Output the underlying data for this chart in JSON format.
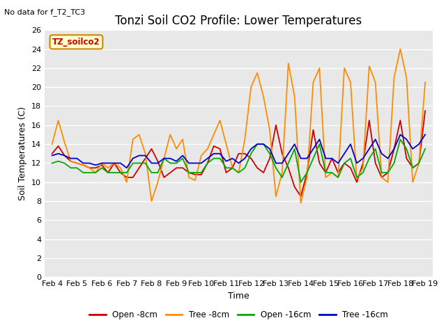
{
  "title": "Tonzi Soil CO2 Profile: Lower Temperatures",
  "subtitle": "No data for f_T2_TC3",
  "ylabel": "Soil Temperatures (C)",
  "xlabel": "Time",
  "legend_label": "TZ_soilco2",
  "ylim": [
    0,
    26
  ],
  "yticks": [
    0,
    2,
    4,
    6,
    8,
    10,
    12,
    14,
    16,
    18,
    20,
    22,
    24,
    26
  ],
  "xtick_labels": [
    "Feb 4",
    "Feb 5",
    "Feb 6",
    "Feb 7",
    "Feb 8",
    "Feb 9",
    "Feb 10",
    "Feb 11",
    "Feb 12",
    "Feb 13",
    "Feb 14",
    "Feb 15",
    "Feb 16",
    "Feb 17",
    "Feb 18",
    "Feb 19"
  ],
  "series": {
    "Open -8cm": {
      "color": "#cc0000",
      "x": [
        0,
        0.25,
        0.5,
        0.75,
        1.0,
        1.25,
        1.5,
        1.75,
        2.0,
        2.25,
        2.5,
        2.75,
        3.0,
        3.25,
        3.5,
        3.75,
        4.0,
        4.25,
        4.5,
        4.75,
        5.0,
        5.25,
        5.5,
        5.75,
        6.0,
        6.25,
        6.5,
        6.75,
        7.0,
        7.25,
        7.5,
        7.75,
        8.0,
        8.25,
        8.5,
        8.75,
        9.0,
        9.25,
        9.5,
        9.75,
        10.0,
        10.25,
        10.5,
        10.75,
        11.0,
        11.25,
        11.5,
        11.75,
        12.0,
        12.25,
        12.5,
        12.75,
        13.0,
        13.25,
        13.5,
        13.75,
        14.0,
        14.25,
        14.5,
        14.75,
        15.0
      ],
      "y": [
        13.0,
        13.8,
        12.8,
        12.2,
        12.0,
        11.8,
        11.5,
        11.5,
        11.8,
        11.0,
        12.0,
        11.0,
        10.5,
        10.5,
        11.5,
        12.5,
        13.5,
        12.2,
        10.5,
        11.0,
        11.5,
        11.5,
        11.0,
        10.8,
        10.8,
        12.0,
        13.8,
        13.5,
        11.0,
        11.5,
        13.0,
        13.0,
        12.5,
        11.5,
        11.0,
        12.5,
        16.0,
        13.0,
        11.5,
        9.5,
        8.5,
        11.0,
        15.5,
        12.0,
        11.0,
        12.5,
        11.0,
        12.0,
        11.5,
        10.0,
        12.0,
        16.5,
        12.0,
        10.5,
        11.0,
        13.5,
        16.5,
        12.5,
        11.5,
        12.0,
        17.5
      ]
    },
    "Tree -8cm": {
      "color": "#ff8c00",
      "x": [
        0,
        0.25,
        0.5,
        0.75,
        1.0,
        1.25,
        1.5,
        1.75,
        2.0,
        2.25,
        2.5,
        2.75,
        3.0,
        3.25,
        3.5,
        3.75,
        4.0,
        4.25,
        4.5,
        4.75,
        5.0,
        5.25,
        5.5,
        5.75,
        6.0,
        6.25,
        6.5,
        6.75,
        7.0,
        7.25,
        7.5,
        7.75,
        8.0,
        8.25,
        8.5,
        8.75,
        9.0,
        9.25,
        9.5,
        9.75,
        10.0,
        10.25,
        10.5,
        10.75,
        11.0,
        11.25,
        11.5,
        11.75,
        12.0,
        12.25,
        12.5,
        12.75,
        13.0,
        13.25,
        13.5,
        13.75,
        14.0,
        14.25,
        14.5,
        14.75,
        15.0
      ],
      "y": [
        14.0,
        16.5,
        14.2,
        12.2,
        12.0,
        11.8,
        11.5,
        11.0,
        12.0,
        11.5,
        12.0,
        11.5,
        10.0,
        14.5,
        15.0,
        13.0,
        8.0,
        10.0,
        12.5,
        15.0,
        13.5,
        14.5,
        10.5,
        10.2,
        12.8,
        13.5,
        15.0,
        16.5,
        14.0,
        11.5,
        11.0,
        14.5,
        20.0,
        21.5,
        19.0,
        15.5,
        8.5,
        11.0,
        22.5,
        19.0,
        7.8,
        10.5,
        20.5,
        22.0,
        10.5,
        11.0,
        10.5,
        22.0,
        20.5,
        10.3,
        11.5,
        22.2,
        20.5,
        10.5,
        10.0,
        21.0,
        24.0,
        21.0,
        10.0,
        12.0,
        20.5
      ]
    },
    "Open -16cm": {
      "color": "#00aa00",
      "x": [
        0,
        0.25,
        0.5,
        0.75,
        1.0,
        1.25,
        1.5,
        1.75,
        2.0,
        2.25,
        2.5,
        2.75,
        3.0,
        3.25,
        3.5,
        3.75,
        4.0,
        4.25,
        4.5,
        4.75,
        5.0,
        5.25,
        5.5,
        5.75,
        6.0,
        6.25,
        6.5,
        6.75,
        7.0,
        7.25,
        7.5,
        7.75,
        8.0,
        8.25,
        8.5,
        8.75,
        9.0,
        9.25,
        9.5,
        9.75,
        10.0,
        10.25,
        10.5,
        10.75,
        11.0,
        11.25,
        11.5,
        11.75,
        12.0,
        12.25,
        12.5,
        12.75,
        13.0,
        13.25,
        13.5,
        13.75,
        14.0,
        14.25,
        14.5,
        14.75,
        15.0
      ],
      "y": [
        12.0,
        12.2,
        12.0,
        11.5,
        11.5,
        11.0,
        11.0,
        11.0,
        11.5,
        11.0,
        11.0,
        11.0,
        11.0,
        12.0,
        12.0,
        12.0,
        11.0,
        11.0,
        12.5,
        12.0,
        12.0,
        12.5,
        11.0,
        11.0,
        11.0,
        12.0,
        12.5,
        12.5,
        11.5,
        11.5,
        11.0,
        11.5,
        13.0,
        14.0,
        14.0,
        13.0,
        11.5,
        10.5,
        12.0,
        13.5,
        10.0,
        11.0,
        12.5,
        14.0,
        11.0,
        11.0,
        10.5,
        12.0,
        12.5,
        10.5,
        11.0,
        12.5,
        13.5,
        11.0,
        11.0,
        12.0,
        14.5,
        13.5,
        11.5,
        12.0,
        13.5
      ]
    },
    "Tree -16cm": {
      "color": "#0000cc",
      "x": [
        0,
        0.25,
        0.5,
        0.75,
        1.0,
        1.25,
        1.5,
        1.75,
        2.0,
        2.25,
        2.5,
        2.75,
        3.0,
        3.25,
        3.5,
        3.75,
        4.0,
        4.25,
        4.5,
        4.75,
        5.0,
        5.25,
        5.5,
        5.75,
        6.0,
        6.25,
        6.5,
        6.75,
        7.0,
        7.25,
        7.5,
        7.75,
        8.0,
        8.25,
        8.5,
        8.75,
        9.0,
        9.25,
        9.5,
        9.75,
        10.0,
        10.25,
        10.5,
        10.75,
        11.0,
        11.25,
        11.5,
        11.75,
        12.0,
        12.25,
        12.5,
        12.75,
        13.0,
        13.25,
        13.5,
        13.75,
        14.0,
        14.25,
        14.5,
        14.75,
        15.0
      ],
      "y": [
        12.8,
        13.0,
        12.8,
        12.5,
        12.5,
        12.0,
        12.0,
        11.8,
        12.0,
        12.0,
        12.0,
        12.0,
        11.5,
        12.5,
        12.8,
        12.8,
        12.0,
        12.0,
        12.5,
        12.5,
        12.2,
        12.8,
        12.0,
        12.0,
        12.0,
        12.5,
        13.0,
        13.0,
        12.2,
        12.5,
        12.0,
        12.5,
        13.5,
        14.0,
        14.0,
        13.5,
        12.0,
        12.0,
        13.0,
        14.0,
        12.5,
        12.5,
        13.5,
        14.5,
        12.5,
        12.5,
        12.0,
        13.0,
        14.0,
        12.0,
        12.5,
        13.5,
        14.5,
        13.0,
        12.5,
        13.5,
        15.0,
        14.5,
        13.5,
        14.0,
        15.0
      ]
    }
  },
  "bg_color": "#e8e8e8",
  "fig_bg": "#ffffff",
  "grid_color": "#ffffff",
  "title_fontsize": 12,
  "axis_label_fontsize": 9,
  "tick_fontsize": 8
}
